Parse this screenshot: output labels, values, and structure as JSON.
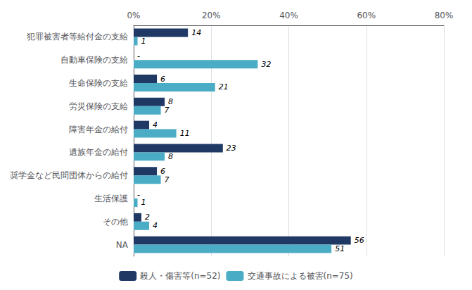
{
  "chart_data": {
    "type": "bar",
    "orientation": "horizontal",
    "categories": [
      "犯罪被害者等給付金の支給",
      "自動車保険の支給",
      "生命保険の支給",
      "労災保険の支給",
      "障害年金の給付",
      "遺族年金の給付",
      "奨学金など民間団体からの給付",
      "生活保護",
      "その他",
      "NA"
    ],
    "series": [
      {
        "name": "殺人・傷害等(n=52)",
        "color": "#1F3864",
        "values": [
          14,
          0,
          6,
          8,
          4,
          23,
          6,
          0,
          2,
          56
        ],
        "value_labels": [
          "14",
          "-",
          "6",
          "8",
          "4",
          "23",
          "6",
          "-",
          "2",
          "56"
        ]
      },
      {
        "name": "交通事故による被害(n=75)",
        "color": "#4BACC6",
        "values": [
          1,
          32,
          21,
          7,
          11,
          8,
          7,
          1,
          4,
          51
        ]
      }
    ],
    "xlim": [
      0,
      80
    ],
    "xticks": [
      {
        "value": 0,
        "label": "0%"
      },
      {
        "value": 20,
        "label": "20%"
      },
      {
        "value": 40,
        "label": "40%"
      },
      {
        "value": 60,
        "label": "60%"
      },
      {
        "value": 80,
        "label": "80%"
      }
    ],
    "grid": true,
    "legend": "bottom",
    "data_labels": true
  }
}
